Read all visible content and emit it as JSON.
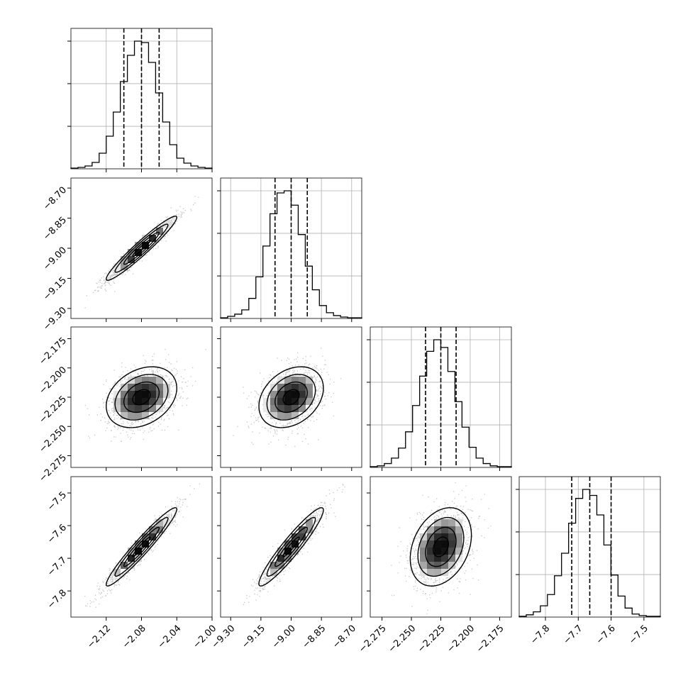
{
  "chart_data": {
    "type": "corner",
    "grid": true,
    "parameters": [
      {
        "range": [
          -2.16,
          -2.0
        ],
        "ticks": [
          -2.12,
          -2.08,
          -2.04,
          -2.0
        ],
        "tick_labels": [
          "−2.12",
          "−2.08",
          "−2.04",
          "−2.00"
        ],
        "quantiles": [
          -2.1,
          -2.08,
          -2.06
        ],
        "histogram": {
          "edges_start": -2.16,
          "edges_end": -2.0,
          "counts": [
            1,
            2,
            4,
            9,
            22,
            46,
            80,
            123,
            160,
            180,
            178,
            150,
            107,
            66,
            34,
            15,
            8,
            4,
            2,
            1
          ]
        }
      },
      {
        "range": [
          -9.35,
          -8.65
        ],
        "ticks": [
          -9.3,
          -9.15,
          -9.0,
          -8.85,
          -8.7
        ],
        "tick_labels": [
          "−9.30",
          "−9.15",
          "−9.00",
          "−8.85",
          "−8.70"
        ],
        "quantiles": [
          -9.08,
          -9.0,
          -8.92
        ],
        "histogram": {
          "edges_start": -9.35,
          "edges_end": -8.65,
          "counts": [
            1,
            3,
            6,
            12,
            28,
            58,
            101,
            146,
            175,
            178,
            158,
            117,
            73,
            40,
            18,
            8,
            4,
            2,
            1,
            1
          ]
        }
      },
      {
        "range": [
          -2.285,
          -2.165
        ],
        "ticks": [
          -2.275,
          -2.25,
          -2.225,
          -2.2,
          -2.175
        ],
        "tick_labels": [
          "−2.275",
          "−2.250",
          "−2.225",
          "−2.200",
          "−2.175"
        ],
        "quantiles": [
          -2.238,
          -2.225,
          -2.212
        ],
        "histogram": {
          "edges_start": -2.285,
          "edges_end": -2.165,
          "counts": [
            1,
            2,
            5,
            12,
            25,
            46,
            80,
            118,
            150,
            165,
            155,
            124,
            85,
            52,
            26,
            12,
            5,
            2,
            1,
            1
          ]
        }
      },
      {
        "range": [
          -7.88,
          -7.45
        ],
        "ticks": [
          -7.8,
          -7.7,
          -7.6,
          -7.5
        ],
        "tick_labels": [
          "−7.8",
          "−7.7",
          "−7.6",
          "−7.5"
        ],
        "quantiles": [
          -7.72,
          -7.665,
          -7.6
        ],
        "histogram": {
          "edges_start": -7.88,
          "edges_end": -7.45,
          "counts": [
            1,
            3,
            7,
            15,
            30,
            55,
            85,
            125,
            158,
            170,
            162,
            136,
            96,
            56,
            28,
            12,
            4,
            2,
            1,
            1
          ]
        }
      }
    ],
    "correlations": {
      "1,0": 0.96,
      "2,0": 0.3,
      "2,1": 0.3,
      "3,0": 0.96,
      "3,1": 0.94,
      "3,2": 0.3
    }
  }
}
